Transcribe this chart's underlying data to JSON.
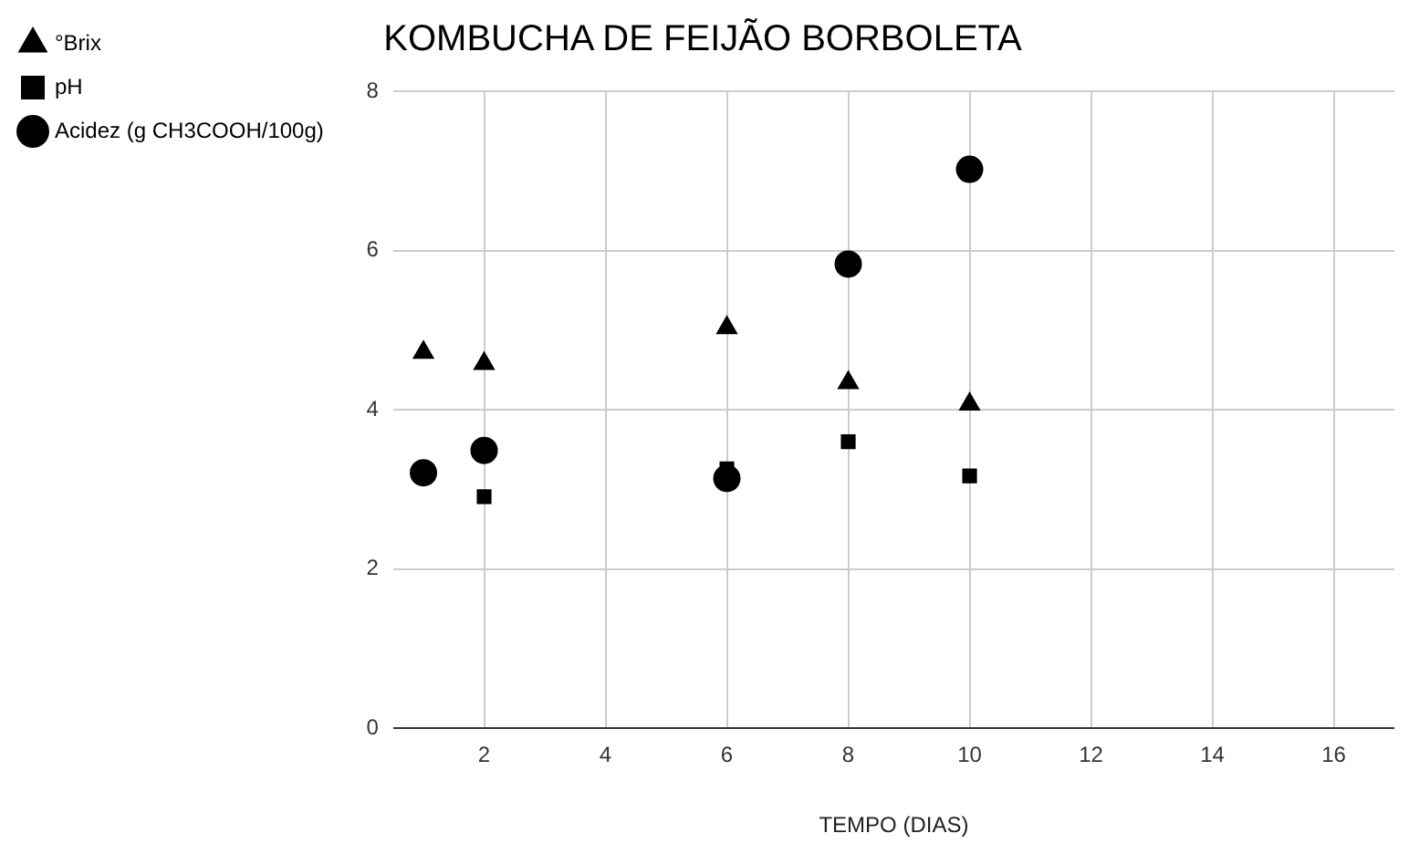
{
  "chart_data": {
    "type": "scatter",
    "title": "KOMBUCHA DE FEIJÃO BORBOLETA",
    "xlabel": "TEMPO (DIAS)",
    "x": [
      1,
      2,
      6,
      8,
      10
    ],
    "series": [
      {
        "name": "°Brix",
        "color": "#000000",
        "marker": "triangle",
        "values": [
          4.72,
          4.58,
          5.03,
          4.34,
          4.07
        ]
      },
      {
        "name": "pH",
        "color": "#000000",
        "marker": "square",
        "values": [
          null,
          2.91,
          3.26,
          3.6,
          3.17
        ]
      },
      {
        "name": "Acidez (g CH3COOH/100g)",
        "color": "#000000",
        "marker": "circle",
        "values": [
          3.21,
          3.49,
          3.14,
          5.83,
          7.02
        ]
      }
    ],
    "xlim": [
      0.5,
      17
    ],
    "xticks": [
      2,
      4,
      6,
      8,
      10,
      12,
      14,
      16
    ],
    "ylim": [
      0,
      8
    ],
    "yticks": [
      0,
      2,
      4,
      6,
      8
    ],
    "grid": true,
    "legend": "top left"
  }
}
